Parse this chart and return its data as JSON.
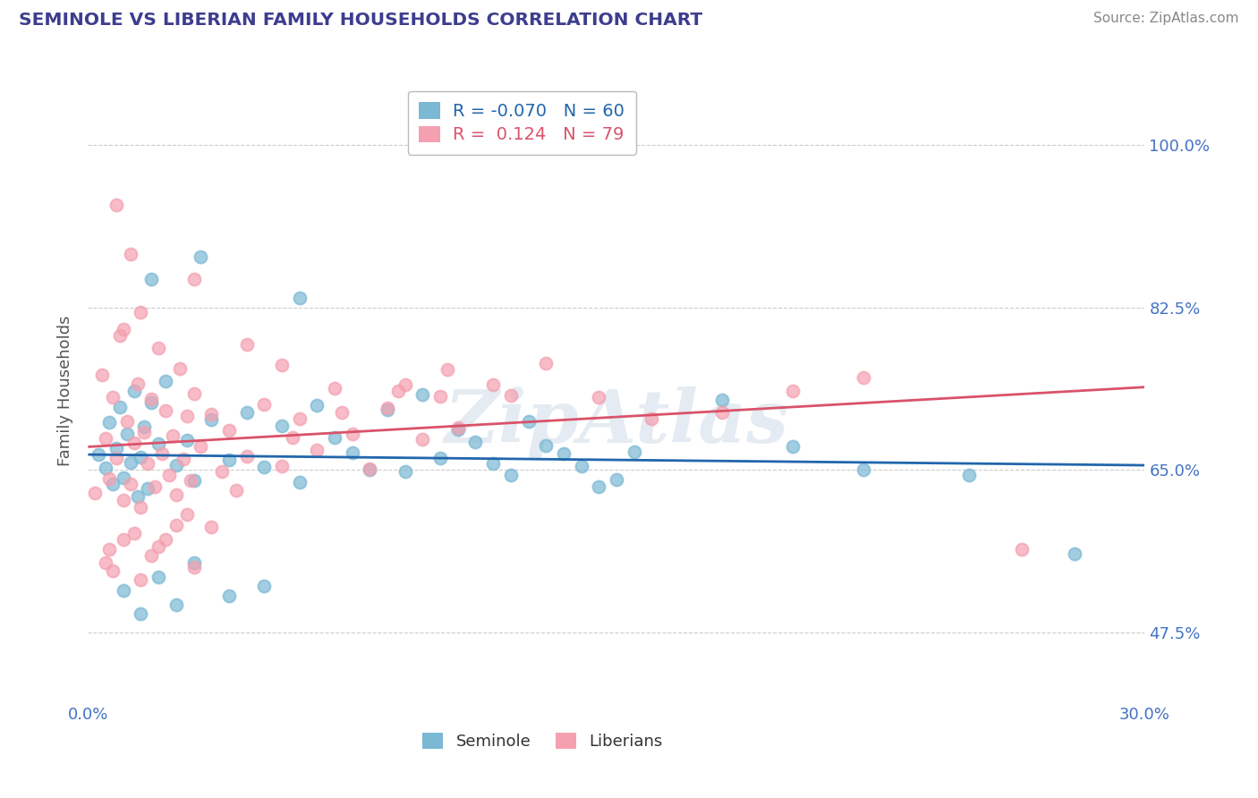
{
  "title": "SEMINOLE VS LIBERIAN FAMILY HOUSEHOLDS CORRELATION CHART",
  "source": "Source: ZipAtlas.com",
  "ylabel": "Family Households",
  "xlim": [
    0.0,
    30.0
  ],
  "ylim": [
    40.0,
    107.0
  ],
  "yticks": [
    47.5,
    65.0,
    82.5,
    100.0
  ],
  "xticks": [
    0.0,
    30.0
  ],
  "ytick_labels": [
    "47.5%",
    "65.0%",
    "82.5%",
    "100.0%"
  ],
  "xtick_labels": [
    "0.0%",
    "30.0%"
  ],
  "seminole_color": "#7bb8d4",
  "liberian_color": "#f4a0b0",
  "seminole_line_color": "#2166ac",
  "liberian_line_color": "#d9536a",
  "r_seminole": -0.07,
  "n_seminole": 60,
  "r_liberian": 0.124,
  "n_liberian": 79,
  "seminole_scatter": [
    [
      0.3,
      66.7
    ],
    [
      0.5,
      65.2
    ],
    [
      0.6,
      70.1
    ],
    [
      0.7,
      63.5
    ],
    [
      0.8,
      67.3
    ],
    [
      0.9,
      71.8
    ],
    [
      1.0,
      64.2
    ],
    [
      1.1,
      68.9
    ],
    [
      1.2,
      65.8
    ],
    [
      1.3,
      73.5
    ],
    [
      1.4,
      62.1
    ],
    [
      1.5,
      66.4
    ],
    [
      1.6,
      69.7
    ],
    [
      1.7,
      63.0
    ],
    [
      1.8,
      72.3
    ],
    [
      2.0,
      67.8
    ],
    [
      2.2,
      74.6
    ],
    [
      2.5,
      65.5
    ],
    [
      2.8,
      68.2
    ],
    [
      3.0,
      63.9
    ],
    [
      3.5,
      70.4
    ],
    [
      4.0,
      66.1
    ],
    [
      4.5,
      71.2
    ],
    [
      5.0,
      65.3
    ],
    [
      5.5,
      69.8
    ],
    [
      6.0,
      63.7
    ],
    [
      6.5,
      72.0
    ],
    [
      7.0,
      68.5
    ],
    [
      7.5,
      66.9
    ],
    [
      8.0,
      65.0
    ],
    [
      8.5,
      71.5
    ],
    [
      9.0,
      64.8
    ],
    [
      9.5,
      73.1
    ],
    [
      10.0,
      66.3
    ],
    [
      10.5,
      69.4
    ],
    [
      11.0,
      68.0
    ],
    [
      11.5,
      65.7
    ],
    [
      12.0,
      64.5
    ],
    [
      12.5,
      70.2
    ],
    [
      13.0,
      67.6
    ],
    [
      13.5,
      66.8
    ],
    [
      14.0,
      65.4
    ],
    [
      14.5,
      63.2
    ],
    [
      15.0,
      64.0
    ],
    [
      15.5,
      67.0
    ],
    [
      1.0,
      52.0
    ],
    [
      1.5,
      49.5
    ],
    [
      2.0,
      53.5
    ],
    [
      2.5,
      50.5
    ],
    [
      3.0,
      55.0
    ],
    [
      4.0,
      51.5
    ],
    [
      5.0,
      52.5
    ],
    [
      1.8,
      85.5
    ],
    [
      3.2,
      88.0
    ],
    [
      6.0,
      83.5
    ],
    [
      18.0,
      72.5
    ],
    [
      20.0,
      67.5
    ],
    [
      22.0,
      65.0
    ],
    [
      25.0,
      64.5
    ],
    [
      28.0,
      56.0
    ]
  ],
  "liberian_scatter": [
    [
      0.2,
      62.5
    ],
    [
      0.4,
      75.2
    ],
    [
      0.5,
      68.4
    ],
    [
      0.6,
      64.1
    ],
    [
      0.7,
      72.8
    ],
    [
      0.8,
      66.3
    ],
    [
      0.9,
      79.5
    ],
    [
      1.0,
      61.8
    ],
    [
      1.1,
      70.2
    ],
    [
      1.2,
      63.5
    ],
    [
      1.3,
      67.9
    ],
    [
      1.4,
      74.3
    ],
    [
      1.5,
      61.0
    ],
    [
      1.6,
      69.1
    ],
    [
      1.7,
      65.7
    ],
    [
      1.8,
      72.6
    ],
    [
      1.9,
      63.2
    ],
    [
      2.0,
      78.1
    ],
    [
      2.1,
      66.8
    ],
    [
      2.2,
      71.4
    ],
    [
      2.3,
      64.5
    ],
    [
      2.4,
      68.7
    ],
    [
      2.5,
      62.3
    ],
    [
      2.6,
      75.9
    ],
    [
      2.7,
      66.2
    ],
    [
      2.8,
      70.8
    ],
    [
      2.9,
      63.9
    ],
    [
      3.0,
      73.2
    ],
    [
      3.2,
      67.5
    ],
    [
      3.5,
      71.0
    ],
    [
      3.8,
      64.8
    ],
    [
      4.0,
      69.3
    ],
    [
      4.5,
      66.5
    ],
    [
      5.0,
      72.1
    ],
    [
      5.5,
      65.4
    ],
    [
      6.0,
      70.5
    ],
    [
      6.5,
      67.2
    ],
    [
      7.0,
      73.8
    ],
    [
      7.5,
      68.9
    ],
    [
      8.0,
      65.1
    ],
    [
      8.5,
      71.7
    ],
    [
      9.0,
      74.2
    ],
    [
      9.5,
      68.3
    ],
    [
      10.0,
      72.9
    ],
    [
      10.5,
      69.6
    ],
    [
      0.5,
      55.0
    ],
    [
      1.0,
      57.5
    ],
    [
      1.5,
      53.2
    ],
    [
      2.0,
      56.8
    ],
    [
      2.5,
      59.1
    ],
    [
      3.0,
      54.5
    ],
    [
      0.8,
      93.5
    ],
    [
      1.2,
      88.2
    ],
    [
      1.5,
      82.0
    ],
    [
      3.0,
      85.5
    ],
    [
      1.0,
      80.2
    ],
    [
      4.5,
      78.5
    ],
    [
      5.5,
      76.3
    ],
    [
      1.3,
      58.2
    ],
    [
      2.2,
      57.5
    ],
    [
      0.6,
      56.5
    ],
    [
      0.7,
      54.2
    ],
    [
      1.8,
      55.8
    ],
    [
      2.8,
      60.2
    ],
    [
      3.5,
      58.9
    ],
    [
      4.2,
      62.8
    ],
    [
      5.8,
      68.5
    ],
    [
      7.2,
      71.2
    ],
    [
      8.8,
      73.5
    ],
    [
      10.2,
      75.8
    ],
    [
      11.5,
      74.2
    ],
    [
      12.0,
      73.0
    ],
    [
      13.0,
      76.5
    ],
    [
      14.5,
      72.8
    ],
    [
      16.0,
      70.5
    ],
    [
      18.0,
      71.2
    ],
    [
      20.0,
      73.5
    ],
    [
      22.0,
      75.0
    ],
    [
      26.5,
      56.5
    ]
  ],
  "background_color": "#ffffff",
  "grid_color": "#cccccc",
  "title_color": "#3d3d8f",
  "source_color": "#888888",
  "axis_tick_color": "#4472c4",
  "watermark": "ZipAtlas",
  "watermark_color": "#d0dce8"
}
